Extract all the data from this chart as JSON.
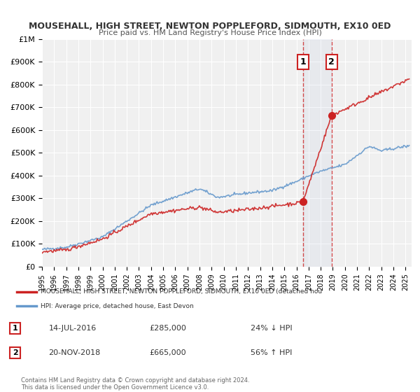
{
  "title": "MOUSEHALL, HIGH STREET, NEWTON POPPLEFORD, SIDMOUTH, EX10 0ED",
  "subtitle": "Price paid vs. HM Land Registry's House Price Index (HPI)",
  "ylabel": "",
  "background_color": "#ffffff",
  "plot_bg_color": "#f0f0f0",
  "grid_color": "#ffffff",
  "hpi_color": "#6699cc",
  "price_color": "#cc2222",
  "sale1_date_num": 2016.54,
  "sale1_price": 285000,
  "sale2_date_num": 2018.9,
  "sale2_price": 665000,
  "ylim": [
    0,
    1000000
  ],
  "xlim_start": 1995.0,
  "xlim_end": 2025.5,
  "legend1_text": "MOUSEHALL, HIGH STREET, NEWTON POPPLEFORD, SIDMOUTH, EX10 0ED (detached hou",
  "legend2_text": "HPI: Average price, detached house, East Devon",
  "annotation1_label": "1",
  "annotation1_date": "14-JUL-2016",
  "annotation1_price": "£285,000",
  "annotation1_hpi": "24% ↓ HPI",
  "annotation2_label": "2",
  "annotation2_date": "20-NOV-2018",
  "annotation2_price": "£665,000",
  "annotation2_hpi": "56% ↑ HPI",
  "copyright_text": "Contains HM Land Registry data © Crown copyright and database right 2024.\nThis data is licensed under the Open Government Licence v3.0."
}
